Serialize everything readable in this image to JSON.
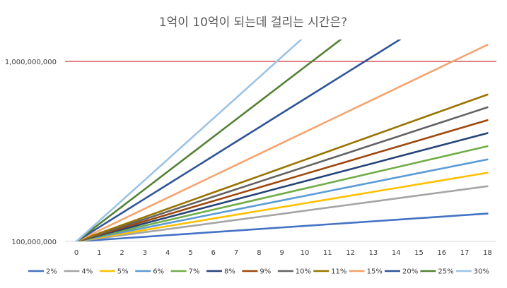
{
  "chart_data": {
    "type": "line",
    "title": "1억이 10억이 되는데 걸리는 시간은?",
    "xlabel": "",
    "ylabel": "",
    "y_scale": "log",
    "x_categories": [
      "0",
      "1",
      "2",
      "3",
      "4",
      "5",
      "6",
      "7",
      "8",
      "9",
      "10",
      "11",
      "12",
      "13",
      "14",
      "15",
      "16",
      "17",
      "18"
    ],
    "y_ticks": [
      {
        "value": 100000000,
        "label": "100,000,000"
      },
      {
        "value": 1000000000,
        "label": "1,000,000,000"
      }
    ],
    "xlim": [
      0,
      18
    ],
    "ylim": [
      100000000,
      1600000000
    ],
    "reference_line": {
      "value": 1000000000,
      "color": "#c00000"
    },
    "legend_position": "bottom",
    "grid": false,
    "principal": 100000000,
    "series": [
      {
        "name": "2%",
        "rate": 0.02,
        "color": "#4472c4"
      },
      {
        "name": "4%",
        "rate": 0.04,
        "color": "#a5a5a5"
      },
      {
        "name": "5%",
        "rate": 0.05,
        "color": "#ffc000"
      },
      {
        "name": "6%",
        "rate": 0.06,
        "color": "#5b9bd5"
      },
      {
        "name": "7%",
        "rate": 0.07,
        "color": "#70ad47"
      },
      {
        "name": "8%",
        "rate": 0.08,
        "color": "#264478"
      },
      {
        "name": "9%",
        "rate": 0.09,
        "color": "#9e480e"
      },
      {
        "name": "10%",
        "rate": 0.1,
        "color": "#636363"
      },
      {
        "name": "11%",
        "rate": 0.11,
        "color": "#997300"
      },
      {
        "name": "15%",
        "rate": 0.15,
        "color": "#f4a46f"
      },
      {
        "name": "20%",
        "rate": 0.2,
        "color": "#2f5597"
      },
      {
        "name": "25%",
        "rate": 0.25,
        "color": "#548235"
      },
      {
        "name": "30%",
        "rate": 0.3,
        "color": "#9dc3e6"
      }
    ]
  }
}
